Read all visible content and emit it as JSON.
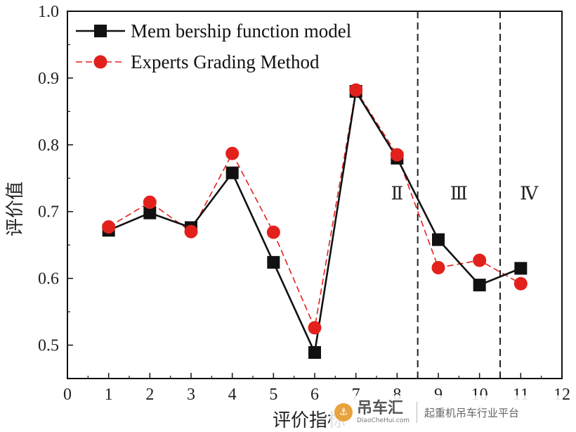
{
  "chart_data": {
    "type": "line",
    "title": "",
    "xlabel": "评价指标",
    "ylabel": "评价值",
    "xlim": [
      0,
      12
    ],
    "ylim": [
      0.45,
      1.0
    ],
    "xticks": [
      0,
      1,
      2,
      3,
      4,
      5,
      6,
      7,
      8,
      9,
      10,
      11,
      12
    ],
    "yticks": [
      0.5,
      0.6,
      0.7,
      0.8,
      0.9,
      1.0
    ],
    "ytick_labels": [
      "0.5",
      "0.6",
      "0.7",
      "0.8",
      "0.9",
      "1.0"
    ],
    "grid": false,
    "legend_position": "top-left",
    "x": [
      1,
      2,
      3,
      4,
      5,
      6,
      7,
      8,
      9,
      10,
      11
    ],
    "series": [
      {
        "name": "Mem bership function model",
        "color": "#111111",
        "marker": "square",
        "line": "solid",
        "values": [
          0.672,
          0.698,
          0.676,
          0.758,
          0.624,
          0.489,
          0.88,
          0.78,
          0.658,
          0.59,
          0.615
        ]
      },
      {
        "name": "Experts Grading Method",
        "color": "#e3211c",
        "marker": "circle",
        "line": "dashed",
        "values": [
          0.677,
          0.714,
          0.67,
          0.787,
          0.669,
          0.526,
          0.882,
          0.785,
          0.616,
          0.627,
          0.592
        ]
      }
    ],
    "dividers": [
      8.5,
      10.5
    ],
    "region_labels": [
      {
        "text": "Ⅱ",
        "x": 8,
        "y": 0.718
      },
      {
        "text": "Ⅲ",
        "x": 9.5,
        "y": 0.718
      },
      {
        "text": "Ⅳ",
        "x": 11.2,
        "y": 0.718
      }
    ]
  },
  "watermark": {
    "logo_icon": "crane-hook-icon",
    "name": "吊车汇",
    "url": "DiaoCheHui.com",
    "slogan": "起重机吊车行业平台"
  }
}
